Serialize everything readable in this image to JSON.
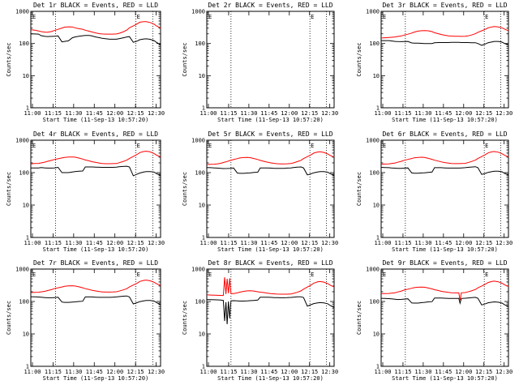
{
  "figure": {
    "colors": {
      "events": "#000000",
      "lld": "#ff0000",
      "axes": "#000000"
    },
    "x_tick_labels": [
      "11:00",
      "11:15",
      "11:30",
      "11:45",
      "12:00",
      "12:15",
      "12:30"
    ],
    "x_label": "Start Time (11-Sep-13 10:57:20)",
    "y_label": "Counts/sec",
    "y_tick_labels": [
      "1",
      "10",
      "100",
      "1000"
    ],
    "marker_label": "E"
  },
  "chart_data": [
    {
      "type": "line",
      "title": "Det 1r BLACK = Events, RED = LLD",
      "xlim": [
        0,
        100
      ],
      "ylim": [
        1,
        1000
      ],
      "yscale": "log",
      "x": [
        0,
        3,
        6,
        8,
        11,
        13,
        16,
        18,
        21,
        24,
        26,
        29,
        32,
        34,
        37,
        40,
        42,
        45,
        47,
        50,
        53,
        55,
        58,
        61,
        63,
        66,
        68,
        71,
        74,
        76,
        79,
        82,
        84,
        87,
        89,
        92,
        95,
        97,
        100
      ],
      "vlines": [
        19,
        81,
        94
      ],
      "series": [
        {
          "name": "Events",
          "color": "#000000",
          "values": [
            200,
            198,
            196,
            175,
            166,
            164,
            166,
            168,
            172,
            112,
            116,
            121,
            151,
            160,
            168,
            174,
            178,
            178,
            172,
            160,
            152,
            145,
            140,
            136,
            136,
            136,
            141,
            150,
            160,
            163,
            109,
            119,
            131,
            138,
            140,
            135,
            123,
            107,
            92
          ]
        },
        {
          "name": "LLD",
          "color": "#ff0000",
          "values": [
            270,
            260,
            245,
            234,
            225,
            225,
            236,
            252,
            276,
            303,
            322,
            330,
            328,
            308,
            289,
            277,
            258,
            241,
            229,
            214,
            201,
            198,
            196,
            196,
            196,
            198,
            208,
            227,
            262,
            308,
            354,
            409,
            459,
            475,
            475,
            450,
            400,
            350,
            300
          ]
        }
      ]
    },
    {
      "type": "line",
      "title": "Det 2r BLACK = Events, RED = LLD",
      "xlim": [
        0,
        100
      ],
      "ylim": [
        1,
        1000
      ],
      "yscale": "log",
      "x": [],
      "vlines": [
        19,
        81,
        94
      ],
      "series": []
    },
    {
      "type": "line",
      "title": "Det 3r BLACK = Events, RED = LLD",
      "xlim": [
        0,
        100
      ],
      "ylim": [
        1,
        1000
      ],
      "yscale": "log",
      "x": [
        0,
        3,
        6,
        8,
        11,
        13,
        16,
        18,
        21,
        24,
        26,
        29,
        32,
        34,
        37,
        40,
        42,
        45,
        47,
        50,
        53,
        55,
        58,
        61,
        63,
        66,
        68,
        71,
        74,
        76,
        79,
        82,
        84,
        87,
        89,
        92,
        95,
        97,
        100
      ],
      "vlines": [
        19,
        81,
        94
      ],
      "series": [
        {
          "name": "Events",
          "color": "#000000",
          "values": [
            123,
            123,
            123,
            120,
            116,
            115,
            114,
            115,
            116,
            104,
            102,
            102,
            101,
            100,
            100,
            100,
            105,
            107,
            107,
            107,
            107,
            108,
            108,
            108,
            107,
            107,
            107,
            105,
            106,
            100,
            88,
            97,
            106,
            112,
            116,
            116,
            110,
            100,
            90
          ]
        },
        {
          "name": "LLD",
          "color": "#ff0000",
          "values": [
            148,
            151,
            154,
            156,
            160,
            165,
            172,
            183,
            195,
            211,
            226,
            242,
            250,
            253,
            248,
            234,
            216,
            201,
            191,
            180,
            173,
            170,
            168,
            167,
            166,
            167,
            172,
            184,
            201,
            222,
            248,
            278,
            306,
            328,
            336,
            327,
            308,
            280,
            250
          ]
        }
      ]
    },
    {
      "type": "line",
      "title": "Det 4r BLACK = Events, RED = LLD",
      "xlim": [
        0,
        100
      ],
      "ylim": [
        1,
        1000
      ],
      "yscale": "log",
      "x": [
        0,
        3,
        6,
        8,
        11,
        13,
        16,
        18,
        21,
        24,
        26,
        29,
        32,
        34,
        37,
        40,
        42,
        45,
        47,
        50,
        53,
        55,
        58,
        61,
        63,
        66,
        68,
        71,
        74,
        76,
        79,
        82,
        84,
        87,
        89,
        92,
        95,
        97,
        100
      ],
      "vlines": [
        19,
        81,
        94
      ],
      "series": [
        {
          "name": "Events",
          "color": "#000000",
          "values": [
            140,
            140,
            140,
            143,
            140,
            138,
            138,
            140,
            145,
            100,
            100,
            100,
            105,
            108,
            110,
            112,
            150,
            150,
            150,
            148,
            146,
            145,
            145,
            145,
            145,
            147,
            151,
            155,
            158,
            150,
            80,
            90,
            97,
            104,
            108,
            108,
            104,
            93,
            82
          ]
        },
        {
          "name": "LLD",
          "color": "#ff0000",
          "values": [
            186,
            190,
            193,
            200,
            211,
            224,
            239,
            254,
            268,
            283,
            294,
            303,
            304,
            300,
            282,
            262,
            245,
            231,
            217,
            206,
            196,
            190,
            188,
            188,
            189,
            191,
            202,
            219,
            242,
            273,
            314,
            365,
            414,
            448,
            458,
            437,
            390,
            345,
            305
          ]
        }
      ]
    },
    {
      "type": "line",
      "title": "Det 5r BLACK = Events, RED = LLD",
      "xlim": [
        0,
        100
      ],
      "ylim": [
        1,
        1000
      ],
      "yscale": "log",
      "x": [
        0,
        3,
        6,
        8,
        11,
        13,
        16,
        18,
        21,
        24,
        26,
        29,
        32,
        34,
        37,
        40,
        42,
        45,
        47,
        50,
        53,
        55,
        58,
        61,
        63,
        66,
        68,
        71,
        74,
        76,
        79,
        82,
        84,
        87,
        89,
        92,
        95,
        97,
        100
      ],
      "vlines": [
        19,
        81,
        94
      ],
      "series": [
        {
          "name": "Events",
          "color": "#000000",
          "values": [
            143,
            142,
            140,
            138,
            135,
            133,
            134,
            136,
            139,
            97,
            95,
            95,
            97,
            98,
            101,
            103,
            140,
            140,
            140,
            138,
            136,
            136,
            136,
            136,
            138,
            140,
            143,
            147,
            150,
            140,
            85,
            92,
            99,
            104,
            107,
            107,
            103,
            93,
            82
          ]
        },
        {
          "name": "LLD",
          "color": "#ff0000",
          "values": [
            178,
            180,
            182,
            186,
            194,
            205,
            220,
            236,
            252,
            270,
            283,
            292,
            295,
            290,
            272,
            254,
            238,
            223,
            212,
            201,
            193,
            188,
            186,
            186,
            187,
            190,
            200,
            217,
            240,
            270,
            310,
            356,
            400,
            432,
            440,
            420,
            378,
            338,
            300
          ]
        }
      ]
    },
    {
      "type": "line",
      "title": "Det 6r BLACK = Events, RED = LLD",
      "xlim": [
        0,
        100
      ],
      "ylim": [
        1,
        1000
      ],
      "yscale": "log",
      "x": [
        0,
        3,
        6,
        8,
        11,
        13,
        16,
        18,
        21,
        24,
        26,
        29,
        32,
        34,
        37,
        40,
        42,
        45,
        47,
        50,
        53,
        55,
        58,
        61,
        63,
        66,
        68,
        71,
        74,
        76,
        79,
        82,
        84,
        87,
        89,
        92,
        95,
        97,
        100
      ],
      "vlines": [
        19,
        81,
        94
      ],
      "series": [
        {
          "name": "Events",
          "color": "#000000",
          "values": [
            145,
            144,
            142,
            140,
            137,
            135,
            135,
            137,
            140,
            98,
            96,
            96,
            98,
            99,
            102,
            104,
            142,
            142,
            142,
            140,
            138,
            138,
            138,
            138,
            140,
            142,
            145,
            149,
            152,
            142,
            88,
            95,
            102,
            107,
            110,
            110,
            106,
            95,
            84
          ]
        },
        {
          "name": "LLD",
          "color": "#ff0000",
          "values": [
            182,
            184,
            186,
            190,
            198,
            209,
            224,
            240,
            256,
            273,
            286,
            295,
            298,
            293,
            275,
            257,
            241,
            226,
            215,
            204,
            196,
            191,
            189,
            189,
            190,
            193,
            203,
            220,
            243,
            273,
            313,
            360,
            405,
            438,
            446,
            426,
            383,
            342,
            303
          ]
        }
      ]
    },
    {
      "type": "line",
      "title": "Det 7r BLACK = Events, RED = LLD",
      "xlim": [
        0,
        100
      ],
      "ylim": [
        1,
        1000
      ],
      "yscale": "log",
      "x": [
        0,
        3,
        6,
        8,
        11,
        13,
        16,
        18,
        21,
        24,
        26,
        29,
        32,
        34,
        37,
        40,
        42,
        45,
        47,
        50,
        53,
        55,
        58,
        61,
        63,
        66,
        68,
        71,
        74,
        76,
        79,
        82,
        84,
        87,
        89,
        92,
        95,
        97,
        100
      ],
      "vlines": [
        19,
        81,
        94
      ],
      "series": [
        {
          "name": "Events",
          "color": "#000000",
          "values": [
            140,
            139,
            137,
            135,
            132,
            130,
            130,
            132,
            135,
            96,
            94,
            94,
            96,
            97,
            100,
            102,
            138,
            138,
            138,
            136,
            134,
            134,
            134,
            134,
            136,
            138,
            141,
            145,
            148,
            138,
            84,
            92,
            99,
            104,
            107,
            107,
            103,
            92,
            80
          ]
        },
        {
          "name": "LLD",
          "color": "#ff0000",
          "values": [
            188,
            190,
            193,
            198,
            206,
            217,
            232,
            248,
            264,
            281,
            294,
            303,
            306,
            301,
            283,
            265,
            249,
            234,
            222,
            211,
            202,
            197,
            195,
            195,
            196,
            199,
            209,
            226,
            249,
            280,
            321,
            368,
            414,
            447,
            456,
            435,
            392,
            350,
            310
          ]
        }
      ]
    },
    {
      "type": "line",
      "title": "Det 8r BLACK = Events, RED = LLD",
      "xlim": [
        0,
        100
      ],
      "ylim": [
        1,
        1000
      ],
      "yscale": "log",
      "x": [
        0,
        3,
        6,
        8,
        11,
        13,
        14,
        15,
        16,
        17,
        18,
        19,
        21,
        24,
        26,
        29,
        32,
        34,
        37,
        40,
        42,
        45,
        47,
        50,
        53,
        55,
        58,
        61,
        63,
        66,
        68,
        71,
        74,
        76,
        79,
        82,
        84,
        87,
        89,
        92,
        95,
        97,
        100
      ],
      "vlines": [
        19,
        81,
        94
      ],
      "series": [
        {
          "name": "Events",
          "color": "#000000",
          "values": [
            115,
            114,
            113,
            112,
            110,
            108,
            25,
            95,
            20,
            100,
            30,
            105,
            106,
            104,
            103,
            103,
            104,
            106,
            108,
            110,
            135,
            136,
            136,
            134,
            132,
            131,
            130,
            130,
            131,
            133,
            136,
            139,
            140,
            132,
            72,
            80,
            86,
            90,
            92,
            90,
            85,
            75,
            65
          ]
        },
        {
          "name": "LLD",
          "color": "#ff0000",
          "values": [
            160,
            158,
            156,
            155,
            154,
            153,
            560,
            170,
            500,
            180,
            520,
            175,
            176,
            184,
            194,
            205,
            212,
            214,
            210,
            200,
            194,
            188,
            182,
            176,
            172,
            169,
            168,
            168,
            168,
            170,
            178,
            192,
            212,
            240,
            278,
            322,
            368,
            402,
            412,
            395,
            356,
            318,
            280
          ]
        }
      ]
    },
    {
      "type": "line",
      "title": "Det 9r BLACK = Events, RED = LLD",
      "xlim": [
        0,
        100
      ],
      "ylim": [
        1,
        1000
      ],
      "yscale": "log",
      "x": [
        0,
        3,
        6,
        8,
        11,
        13,
        16,
        18,
        21,
        24,
        26,
        29,
        32,
        34,
        37,
        40,
        42,
        45,
        47,
        50,
        53,
        55,
        58,
        61,
        62,
        63,
        66,
        68,
        71,
        74,
        76,
        79,
        82,
        84,
        87,
        89,
        92,
        95,
        97,
        100
      ],
      "vlines": [
        19,
        81,
        94
      ],
      "series": [
        {
          "name": "Events",
          "color": "#000000",
          "values": [
            125,
            124,
            122,
            120,
            117,
            115,
            116,
            118,
            121,
            90,
            89,
            89,
            92,
            94,
            97,
            99,
            128,
            128,
            128,
            126,
            124,
            124,
            124,
            124,
            88,
            124,
            126,
            128,
            131,
            134,
            126,
            78,
            85,
            91,
            95,
            97,
            95,
            89,
            79,
            70
          ]
        },
        {
          "name": "LLD",
          "color": "#ff0000",
          "values": [
            175,
            176,
            177,
            180,
            186,
            196,
            210,
            225,
            240,
            256,
            268,
            276,
            279,
            275,
            260,
            244,
            230,
            217,
            207,
            198,
            190,
            186,
            184,
            184,
            110,
            185,
            188,
            197,
            213,
            235,
            263,
            300,
            343,
            385,
            415,
            423,
            405,
            366,
            328,
            290
          ]
        }
      ]
    }
  ]
}
